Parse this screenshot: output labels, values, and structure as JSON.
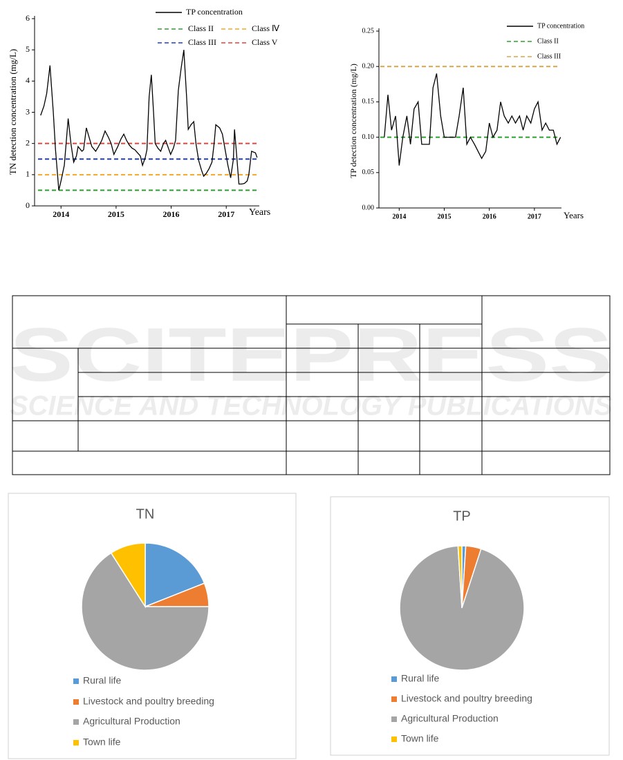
{
  "chart_data": [
    {
      "type": "line",
      "ylabel": "TN detection concentration (mg/L)",
      "xlabel": "Years",
      "xlim": [
        2013.52,
        2017.6
      ],
      "xticks": [
        2014,
        2015,
        2016,
        2017
      ],
      "ylim": [
        0,
        6
      ],
      "yticks": [
        0,
        1,
        2,
        3,
        4,
        5,
        6
      ],
      "x": [
        2013.63,
        2013.69,
        2013.74,
        2013.8,
        2013.86,
        2013.9,
        2013.96,
        2014.0,
        2014.06,
        2014.13,
        2014.18,
        2014.23,
        2014.28,
        2014.31,
        2014.38,
        2014.41,
        2014.46,
        2014.51,
        2014.56,
        2014.63,
        2014.68,
        2014.74,
        2014.8,
        2014.86,
        2014.91,
        2014.96,
        2015.03,
        2015.09,
        2015.14,
        2015.19,
        2015.24,
        2015.29,
        2015.34,
        2015.39,
        2015.44,
        2015.48,
        2015.53,
        2015.56,
        2015.6,
        2015.64,
        2015.68,
        2015.71,
        2015.76,
        2015.81,
        2015.86,
        2015.9,
        2015.95,
        2015.99,
        2016.04,
        2016.08,
        2016.13,
        2016.18,
        2016.23,
        2016.28,
        2016.31,
        2016.36,
        2016.41,
        2016.45,
        2016.5,
        2016.55,
        2016.59,
        2016.64,
        2016.69,
        2016.74,
        2016.78,
        2016.81,
        2016.88,
        2016.93,
        2016.98,
        2017.03,
        2017.08,
        2017.13,
        2017.15,
        2017.19,
        2017.23,
        2017.28,
        2017.33,
        2017.38,
        2017.41,
        2017.46,
        2017.53,
        2017.56
      ],
      "series": [
        {
          "name": "TP concentration",
          "color": "#000000",
          "values": [
            2.9,
            3.2,
            3.6,
            4.5,
            3.0,
            1.8,
            0.5,
            0.8,
            1.3,
            2.8,
            2.0,
            1.4,
            1.6,
            1.9,
            1.75,
            1.8,
            2.5,
            2.2,
            1.9,
            1.75,
            1.9,
            2.1,
            2.4,
            2.2,
            2.0,
            1.65,
            1.9,
            2.15,
            2.3,
            2.1,
            1.95,
            1.85,
            1.8,
            1.7,
            1.6,
            1.3,
            1.55,
            1.8,
            3.5,
            4.2,
            3.0,
            2.0,
            1.85,
            1.75,
            2.0,
            2.1,
            1.85,
            1.65,
            1.85,
            2.1,
            3.7,
            4.4,
            5.0,
            3.5,
            2.45,
            2.6,
            2.7,
            2.0,
            1.45,
            1.15,
            0.95,
            1.05,
            1.2,
            1.4,
            2.0,
            2.6,
            2.5,
            2.3,
            1.8,
            1.3,
            0.9,
            1.5,
            2.45,
            1.6,
            0.7,
            0.7,
            0.72,
            0.8,
            1.0,
            1.75,
            1.7,
            1.55
          ]
        }
      ],
      "reference_lines": [
        {
          "name": "Class II",
          "value": 0.5,
          "color": "#2ca02c"
        },
        {
          "name": "Class Ⅳ",
          "value": 1.0,
          "color": "#f5a623"
        },
        {
          "name": "Class III",
          "value": 1.5,
          "color": "#1f3fbf"
        },
        {
          "name": "Class V",
          "value": 2.0,
          "color": "#e0433a"
        }
      ]
    },
    {
      "type": "line",
      "ylabel": "TP detection concentration (mg/L)",
      "xlabel": "Years",
      "xlim": [
        2013.55,
        2017.6
      ],
      "xticks": [
        2014,
        2015,
        2016,
        2017
      ],
      "ylim": [
        0,
        0.25
      ],
      "yticks": [
        {
          "value": 0,
          "label": "0.00"
        },
        {
          "value": 0.05,
          "label": "0.05"
        },
        {
          "value": 0.1,
          "label": "0.10"
        },
        {
          "value": 0.15,
          "label": "0.15"
        },
        {
          "value": 0.2,
          "label": "0.20"
        },
        {
          "value": 0.25,
          "label": "0.25"
        }
      ],
      "x": [
        2013.67,
        2013.75,
        2013.83,
        2013.92,
        2014.0,
        2014.08,
        2014.17,
        2014.25,
        2014.33,
        2014.42,
        2014.5,
        2014.58,
        2014.67,
        2014.75,
        2014.83,
        2014.92,
        2015.0,
        2015.08,
        2015.17,
        2015.25,
        2015.33,
        2015.42,
        2015.5,
        2015.58,
        2015.67,
        2015.75,
        2015.83,
        2015.92,
        2016.0,
        2016.08,
        2016.17,
        2016.25,
        2016.33,
        2016.42,
        2016.5,
        2016.58,
        2016.67,
        2016.75,
        2016.83,
        2016.92,
        2017.0,
        2017.08,
        2017.17,
        2017.25,
        2017.33,
        2017.42,
        2017.5,
        2017.58
      ],
      "series": [
        {
          "name": "TP concentration",
          "color": "#000000",
          "values": [
            0.1,
            0.16,
            0.11,
            0.13,
            0.06,
            0.1,
            0.13,
            0.09,
            0.14,
            0.15,
            0.09,
            0.09,
            0.09,
            0.17,
            0.19,
            0.13,
            0.1,
            0.1,
            0.1,
            0.1,
            0.13,
            0.17,
            0.09,
            0.1,
            0.09,
            0.08,
            0.07,
            0.08,
            0.12,
            0.1,
            0.11,
            0.15,
            0.13,
            0.12,
            0.13,
            0.12,
            0.13,
            0.11,
            0.13,
            0.12,
            0.14,
            0.15,
            0.11,
            0.12,
            0.11,
            0.11,
            0.09,
            0.1
          ]
        }
      ],
      "reference_lines": [
        {
          "name": "Class II",
          "value": 0.1,
          "color": "#2ca02c"
        },
        {
          "name": "Class III",
          "value": 0.2,
          "color": "#d9a54a"
        }
      ]
    },
    {
      "type": "pie",
      "title": "TN",
      "categories": [
        "Rural life",
        "Livestock and poultry breeding",
        "Agricultural Production",
        "Town life"
      ],
      "values": [
        19,
        6,
        66,
        9
      ],
      "colors": [
        "#5b9bd5",
        "#ed7d31",
        "#a5a5a5",
        "#ffc000"
      ]
    },
    {
      "type": "pie",
      "title": "TP",
      "categories": [
        "Rural life",
        "Livestock and poultry breeding",
        "Agricultural Production",
        "Town life"
      ],
      "values": [
        1,
        4,
        94,
        1
      ],
      "colors": [
        "#5b9bd5",
        "#ed7d31",
        "#a5a5a5",
        "#ffc000"
      ]
    }
  ],
  "watermark": {
    "title": "SCITEPRESS",
    "subtitle": "SCIENCE AND TECHNOLOGY PUBLICATIONS"
  }
}
